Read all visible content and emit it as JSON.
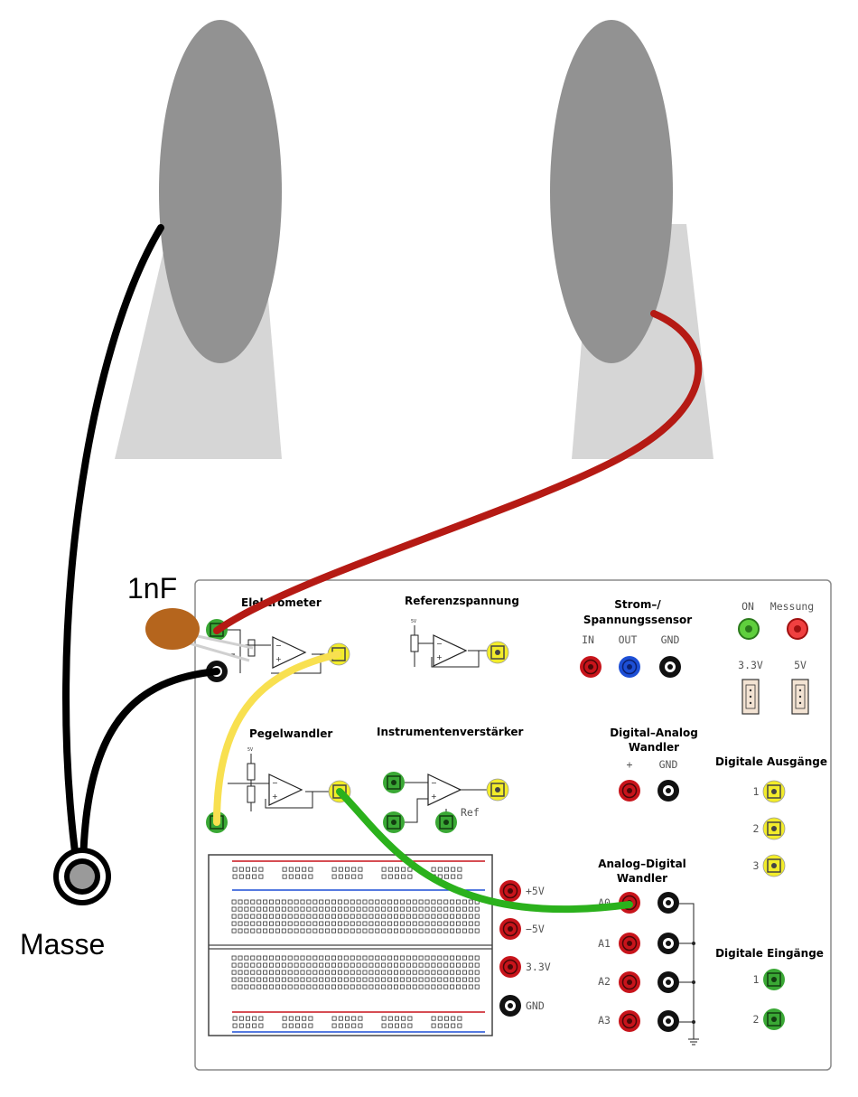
{
  "labels": {
    "capacitor": "1nF",
    "ground": "Masse"
  },
  "board": {
    "elektrometer": "Elektrometer",
    "referenzspannung": "Referenzspannung",
    "ref_5v": "5V",
    "strom_line1": "Strom–/",
    "strom_line2": "Spannungssensor",
    "strom_in": "IN",
    "strom_out": "OUT",
    "strom_gnd": "GND",
    "on": "ON",
    "messung": "Messung",
    "v33": "3.3V",
    "v5": "5V",
    "pegelwandler": "Pegelwandler",
    "pegel_5v": "5V",
    "instrument": "Instrumentenverstärker",
    "ref": "Ref",
    "dac_line1": "Digital–Analog",
    "dac_line2": "Wandler",
    "dac_plus": "+",
    "dac_gnd": "GND",
    "dig_out": "Digitale Ausgänge",
    "out1": "1",
    "out2": "2",
    "out3": "3",
    "adc_line1": "Analog–Digital",
    "adc_line2": "Wandler",
    "a0": "A0",
    "a1": "A1",
    "a2": "A2",
    "a3": "A3",
    "dig_in": "Digitale Eingänge",
    "in1": "1",
    "in2": "2",
    "rail_p5": "+5V",
    "rail_m5": "−5V",
    "rail_33": "3.3V",
    "rail_gnd": "GND"
  },
  "colors": {
    "plate": "#929292",
    "stand": "#d6d6d6",
    "wire_black": "#000000",
    "wire_red": "#b51a14",
    "wire_yellow": "#f8e050",
    "wire_green": "#2bb11c",
    "jack_red": "#c8141b",
    "jack_black": "#111111",
    "jack_green": "#3aa835",
    "jack_yellow": "#f2ec2a",
    "jack_blue": "#1d4fd6",
    "capacitor": "#b5651d"
  },
  "icons": {
    "jack": "banana-socket-icon",
    "opamp": "op-amp-symbol",
    "connector": "pin-header-icon"
  }
}
